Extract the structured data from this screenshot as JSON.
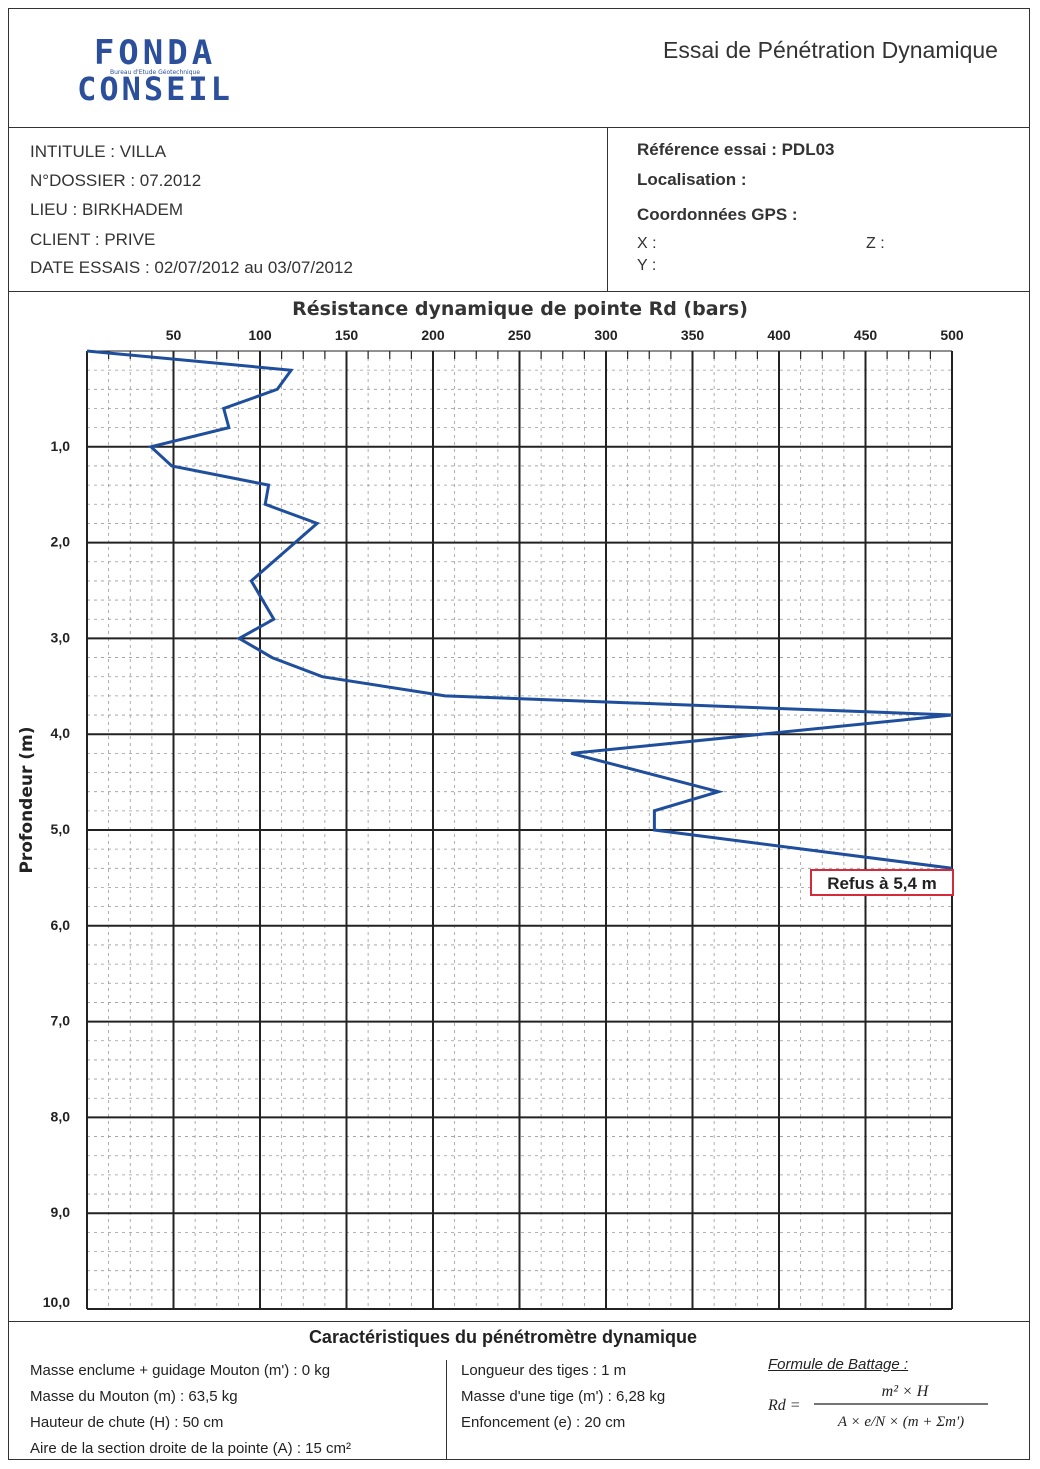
{
  "header": {
    "logo_top": "FONDA",
    "logo_tagline": "Bureau d'Etude Géotechnique",
    "logo_bottom": "CONSEIL",
    "title": "Essai de Pénétration Dynamique"
  },
  "info_left": [
    "INTITULE : VILLA",
    "N°DOSSIER : 07.2012",
    "LIEU : BIRKHADEM",
    "CLIENT : PRIVE",
    "DATE ESSAIS : 02/07/2012 au 03/07/2012"
  ],
  "info_right": {
    "reference": "Référence essai : PDL03",
    "localisation": "Localisation :",
    "gps": "Coordonnées GPS :",
    "x": "X :",
    "z": "Z :",
    "y": "Y :"
  },
  "chart_data": {
    "type": "line",
    "title": "Résistance dynamique de pointe Rd (bars)",
    "xlabel": "Résistance dynamique de pointe Rd (bars)",
    "ylabel": "Profondeur (m)",
    "xlim": [
      0,
      500
    ],
    "ylim": [
      0,
      10
    ],
    "y_inverted": true,
    "x_ticks": [
      "50",
      "100",
      "150",
      "200",
      "250",
      "300",
      "350",
      "400",
      "450",
      "500"
    ],
    "y_ticks": [
      "1,0",
      "2,0",
      "3,0",
      "4,0",
      "5,0",
      "6,0",
      "7,0",
      "8,0",
      "9,0",
      "10,0"
    ],
    "grid": true,
    "line_color": "#1f4e9c",
    "series": [
      {
        "x": [
          0,
          118,
          110,
          79,
          82,
          37,
          49,
          105,
          103,
          133,
          95,
          108,
          88,
          107,
          136,
          207,
          500,
          280,
          365,
          328,
          328,
          500
        ],
        "y": [
          0,
          0.2,
          0.4,
          0.6,
          0.8,
          1.0,
          1.2,
          1.4,
          1.6,
          1.8,
          2.4,
          2.8,
          3.0,
          3.2,
          3.4,
          3.6,
          3.8,
          4.2,
          4.6,
          4.8,
          5.0,
          5.4
        ]
      }
    ],
    "annotation": "Refus à 5,4 m",
    "annotation_color": "#d42a3a"
  },
  "specs": {
    "title": "Caractéristiques du pénétromètre dynamique",
    "col1": [
      "Masse enclume + guidage Mouton (m') : 0 kg",
      "Masse du Mouton (m) : 63,5 kg",
      "Hauteur de chute (H) : 50 cm",
      "Aire de la section droite de la pointe (A) : 15 cm²"
    ],
    "col2": [
      "Longueur des tiges :  1 m",
      "Masse d'une tige (m') :  6,28 kg",
      "Enfoncement (e) : 20 cm"
    ],
    "formula_title": "Formule de Battage :",
    "formula_lhs": "Rd =",
    "formula_num": "m² × H",
    "formula_den": "A × e/N × (m + Σm')"
  }
}
